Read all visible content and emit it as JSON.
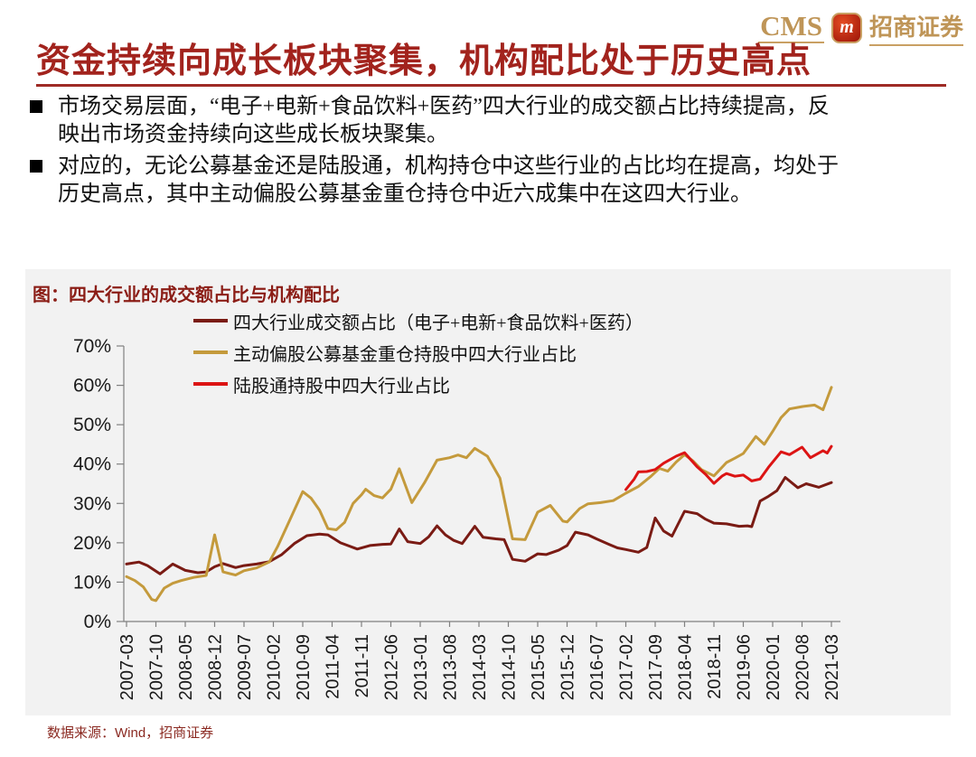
{
  "logo": {
    "cms": "CMS",
    "emblem_letter": "m",
    "company": "招商证券"
  },
  "title": "资金持续向成长板块聚集，机构配比处于历史高点",
  "bullets": [
    "市场交易层面，“电子+电新+食品饮料+医药”四大行业的成交额占比持续提高，反映出市场资金持续向这些成长板块聚集。",
    "对应的，无论公募基金还是陆股通，机构持仓中这些行业的占比均在提高，均处于历史高点，其中主动偏股公募基金重仓持仓中近六成集中在这四大行业。"
  ],
  "chart": {
    "title": "图：四大行业的成交额占比与机构配比"
  },
  "chart_data": {
    "type": "line",
    "title": "图：四大行业的成交额占比与机构配比",
    "x_unit": "month",
    "x_start": "2007-03",
    "x_end": "2021-03",
    "x_range_months": [
      0,
      168
    ],
    "x_tick_interval_months": 7,
    "x_tick_labels": [
      "2007-03",
      "2007-10",
      "2008-05",
      "2008-12",
      "2009-07",
      "2010-02",
      "2010-09",
      "2011-04",
      "2011-11",
      "2012-06",
      "2013-01",
      "2013-08",
      "2014-03",
      "2014-10",
      "2015-05",
      "2015-12",
      "2016-07",
      "2017-02",
      "2017-09",
      "2018-04",
      "2018-11",
      "2019-06",
      "2020-01",
      "2020-08",
      "2021-03"
    ],
    "ylim": [
      0,
      70
    ],
    "y_tick_step": 10,
    "y_tick_labels": [
      "0%",
      "10%",
      "20%",
      "30%",
      "40%",
      "50%",
      "60%",
      "70%"
    ],
    "grid": false,
    "legend_position": "top-left-overlay",
    "plot_background": "#F2F2F2",
    "series": [
      {
        "name": "四大行业成交额占比（电子+电新+食品饮料+医药）",
        "color": "#7A1B14",
        "points": [
          [
            0,
            14.6
          ],
          [
            3,
            15.1
          ],
          [
            5,
            14.2
          ],
          [
            8,
            12.1
          ],
          [
            11,
            14.6
          ],
          [
            14,
            13.0
          ],
          [
            17,
            12.4
          ],
          [
            19,
            12.6
          ],
          [
            21,
            13.9
          ],
          [
            23,
            14.7
          ],
          [
            26,
            13.7
          ],
          [
            28,
            14.2
          ],
          [
            31,
            14.6
          ],
          [
            34,
            15.2
          ],
          [
            37,
            17.0
          ],
          [
            40,
            19.8
          ],
          [
            43,
            21.8
          ],
          [
            46,
            22.2
          ],
          [
            48,
            22.0
          ],
          [
            51,
            20.0
          ],
          [
            55,
            18.4
          ],
          [
            58,
            19.3
          ],
          [
            61,
            19.6
          ],
          [
            63,
            19.7
          ],
          [
            65,
            23.5
          ],
          [
            67,
            20.3
          ],
          [
            70,
            19.8
          ],
          [
            72,
            21.5
          ],
          [
            74,
            24.3
          ],
          [
            76,
            22.0
          ],
          [
            78,
            20.6
          ],
          [
            80,
            19.8
          ],
          [
            83,
            24.2
          ],
          [
            85,
            21.4
          ],
          [
            88,
            21.0
          ],
          [
            90,
            20.8
          ],
          [
            92,
            15.8
          ],
          [
            95,
            15.3
          ],
          [
            98,
            17.2
          ],
          [
            100,
            17.0
          ],
          [
            103,
            18.1
          ],
          [
            105,
            19.3
          ],
          [
            107,
            22.7
          ],
          [
            110,
            22.0
          ],
          [
            112,
            21.0
          ],
          [
            115,
            19.6
          ],
          [
            117,
            18.7
          ],
          [
            119,
            18.3
          ],
          [
            122,
            17.6
          ],
          [
            124,
            18.8
          ],
          [
            126,
            26.3
          ],
          [
            128,
            23.0
          ],
          [
            130,
            21.7
          ],
          [
            133,
            28.0
          ],
          [
            136,
            27.4
          ],
          [
            138,
            26.0
          ],
          [
            140,
            25.0
          ],
          [
            143,
            24.8
          ],
          [
            146,
            24.2
          ],
          [
            148,
            24.3
          ],
          [
            149,
            24.1
          ],
          [
            151,
            30.6
          ],
          [
            153,
            31.8
          ],
          [
            155,
            33.2
          ],
          [
            157,
            36.6
          ],
          [
            160,
            34.0
          ],
          [
            162,
            35.0
          ],
          [
            165,
            34.1
          ],
          [
            168,
            35.3
          ]
        ]
      },
      {
        "name": "主动偏股公募基金重仓持股中四大行业占比",
        "color": "#C49A3C",
        "points": [
          [
            0,
            11.4
          ],
          [
            2,
            10.4
          ],
          [
            4,
            8.8
          ],
          [
            6,
            5.6
          ],
          [
            7,
            5.3
          ],
          [
            9,
            8.5
          ],
          [
            11,
            9.7
          ],
          [
            13,
            10.4
          ],
          [
            16,
            11.2
          ],
          [
            19,
            11.7
          ],
          [
            21,
            22.0
          ],
          [
            23,
            12.6
          ],
          [
            26,
            11.8
          ],
          [
            28,
            12.9
          ],
          [
            31,
            13.6
          ],
          [
            34,
            15.1
          ],
          [
            36,
            19.0
          ],
          [
            39,
            26.0
          ],
          [
            42,
            33.0
          ],
          [
            44,
            31.3
          ],
          [
            46,
            28.3
          ],
          [
            48,
            23.6
          ],
          [
            50,
            23.3
          ],
          [
            52,
            25.2
          ],
          [
            54,
            30.0
          ],
          [
            56,
            32.2
          ],
          [
            57,
            33.6
          ],
          [
            59,
            32.0
          ],
          [
            61,
            31.4
          ],
          [
            63,
            33.6
          ],
          [
            65,
            38.8
          ],
          [
            68,
            30.2
          ],
          [
            71,
            35.2
          ],
          [
            74,
            41.0
          ],
          [
            77,
            41.6
          ],
          [
            79,
            42.3
          ],
          [
            81,
            41.6
          ],
          [
            83,
            44.0
          ],
          [
            86,
            42.0
          ],
          [
            89,
            36.4
          ],
          [
            92,
            21.0
          ],
          [
            95,
            20.8
          ],
          [
            98,
            27.8
          ],
          [
            101,
            29.5
          ],
          [
            104,
            25.5
          ],
          [
            105,
            25.3
          ],
          [
            108,
            28.7
          ],
          [
            110,
            29.9
          ],
          [
            113,
            30.2
          ],
          [
            116,
            30.7
          ],
          [
            119,
            32.6
          ],
          [
            122,
            34.3
          ],
          [
            125,
            36.9
          ],
          [
            127,
            38.9
          ],
          [
            129,
            38.2
          ],
          [
            131,
            40.5
          ],
          [
            133,
            42.4
          ],
          [
            135,
            40.8
          ],
          [
            137,
            38.6
          ],
          [
            140,
            37.0
          ],
          [
            143,
            40.4
          ],
          [
            145,
            41.5
          ],
          [
            147,
            42.7
          ],
          [
            150,
            47.0
          ],
          [
            152,
            45.0
          ],
          [
            154,
            48.3
          ],
          [
            156,
            51.8
          ],
          [
            158,
            54.0
          ],
          [
            161,
            54.6
          ],
          [
            164,
            55.0
          ],
          [
            166,
            53.8
          ],
          [
            168,
            59.5
          ]
        ]
      },
      {
        "name": "陆股通持股中四大行业占比",
        "color": "#DC1414",
        "points": [
          [
            119,
            33.5
          ],
          [
            121,
            36.2
          ],
          [
            122,
            38.0
          ],
          [
            124,
            38.1
          ],
          [
            126,
            38.6
          ],
          [
            128,
            40.2
          ],
          [
            131,
            42.0
          ],
          [
            133,
            42.9
          ],
          [
            136,
            39.3
          ],
          [
            138,
            37.4
          ],
          [
            140,
            35.1
          ],
          [
            142,
            37.0
          ],
          [
            143,
            37.6
          ],
          [
            145,
            36.9
          ],
          [
            147,
            37.2
          ],
          [
            149,
            35.7
          ],
          [
            151,
            36.2
          ],
          [
            153,
            39.2
          ],
          [
            156,
            43.1
          ],
          [
            158,
            42.4
          ],
          [
            161,
            44.3
          ],
          [
            163,
            41.6
          ],
          [
            166,
            43.4
          ],
          [
            167,
            42.8
          ],
          [
            168,
            44.5
          ]
        ]
      }
    ]
  },
  "footer": {
    "source": "数据来源：Wind，招商证券"
  },
  "colors": {
    "title_red": "#A2231D",
    "chart_title_red": "#8B1D16",
    "panel_bg": "#F2F2F2",
    "logo_gold": "#BF9557",
    "footer_red": "#8B2A22",
    "axis_gray": "#808080"
  }
}
